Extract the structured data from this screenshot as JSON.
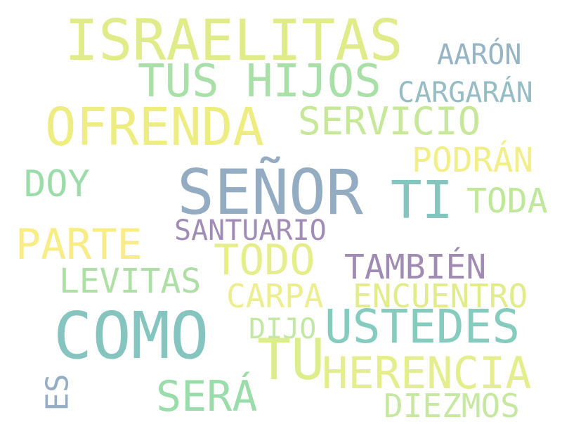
{
  "words": [
    {
      "text": "ISRAELITAS",
      "color": "#e0eb8a"
    },
    {
      "text": "TUS HIJOS",
      "color": "#a8e0a8"
    },
    {
      "text": "AARÓN",
      "color": "#96b4c4"
    },
    {
      "text": "CARGARÁN",
      "color": "#96bcc4"
    },
    {
      "text": "OFRENDA",
      "color": "#eeed82"
    },
    {
      "text": "SERVICIO",
      "color": "#c6e898"
    },
    {
      "text": "PODRÁN",
      "color": "#f2ee8a"
    },
    {
      "text": "DOY",
      "color": "#9cdcaa"
    },
    {
      "text": "SEÑOR",
      "color": "#94acc2"
    },
    {
      "text": "TI",
      "color": "#86c4c0"
    },
    {
      "text": "TODA",
      "color": "#c0e89a"
    },
    {
      "text": "PARTE",
      "color": "#f8ec86"
    },
    {
      "text": "SANTUARIO",
      "color": "#a08cb4"
    },
    {
      "text": "TODO",
      "color": "#e6ee8c"
    },
    {
      "text": "TAMBIÉN",
      "color": "#a08cb2"
    },
    {
      "text": "LEVITAS",
      "color": "#aee0a6"
    },
    {
      "text": "CARPA",
      "color": "#ecee90"
    },
    {
      "text": "ENCUENTRO",
      "color": "#e2ec8c"
    },
    {
      "text": "COMO",
      "color": "#86c4c0"
    },
    {
      "text": "DIJO",
      "color": "#c2e8a4"
    },
    {
      "text": "USTEDES",
      "color": "#86ccbe"
    },
    {
      "text": "TU",
      "color": "#dcee8c"
    },
    {
      "text": "HERENCIA",
      "color": "#e4ee8c"
    },
    {
      "text": "ES",
      "color": "#96aec4"
    },
    {
      "text": "SERÁ",
      "color": "#9adcaa"
    },
    {
      "text": "DIEZMOS",
      "color": "#c6e8a0"
    }
  ]
}
